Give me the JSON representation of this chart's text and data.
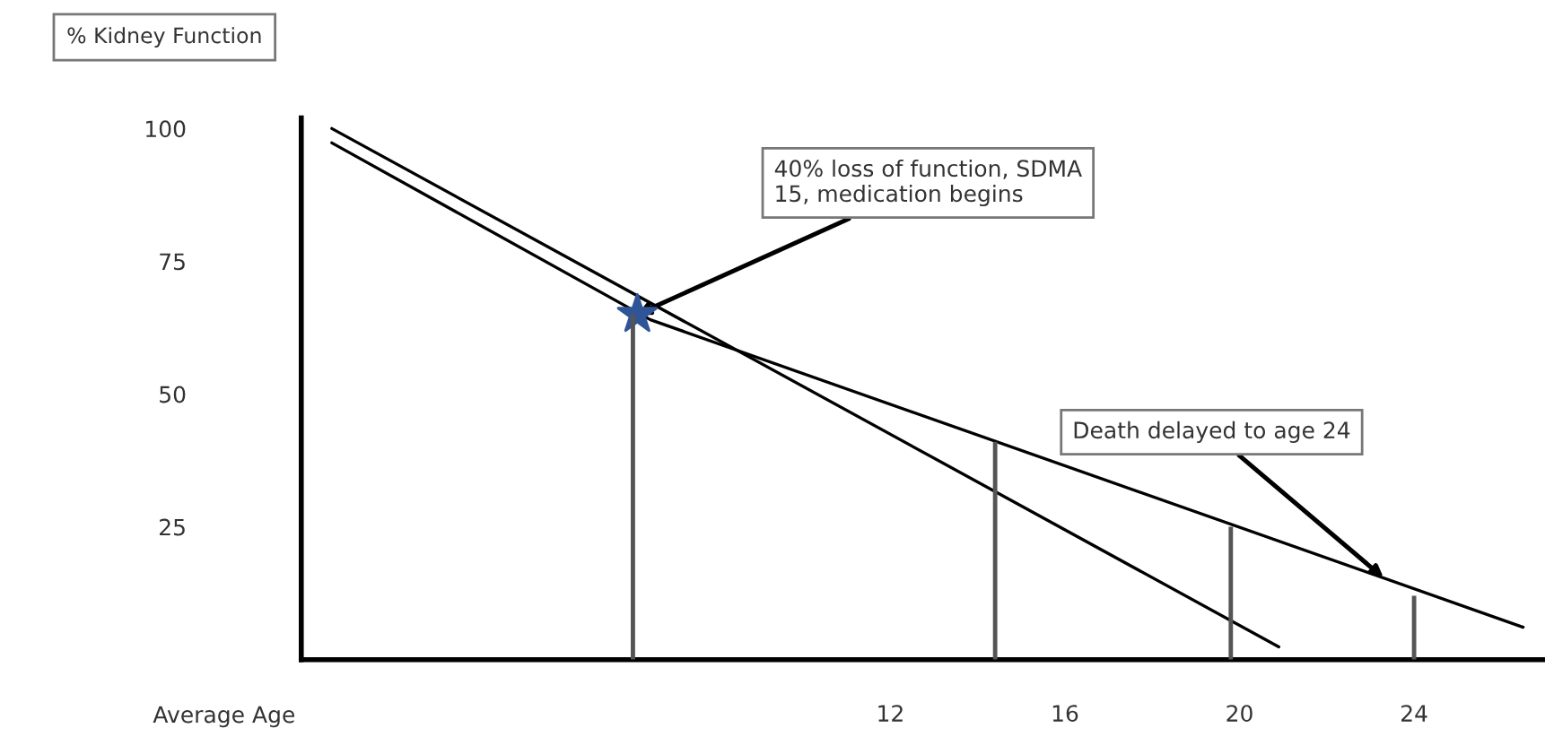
{
  "chart_data": {
    "type": "line",
    "xlabel": "Average Age",
    "ylabel": "% Kidney Function",
    "xlim": [
      -1.5,
      27
    ],
    "ylim": [
      0,
      102
    ],
    "xticks": [
      12,
      16,
      20,
      24
    ],
    "yticks": [
      25,
      50,
      75,
      100
    ],
    "grid": false,
    "series": [
      {
        "color": "#000000",
        "x": [
          -0.8,
          20.9
        ],
        "values": [
          100,
          2.4
        ]
      },
      {
        "color": "#000000",
        "x": [
          -0.8,
          6.5,
          26.5
        ],
        "values": [
          97.3,
          64,
          6.1
        ]
      },
      {
        "type": "bar",
        "color": "#555555",
        "x": [
          6.1,
          14.4,
          19.8,
          24
        ],
        "values": [
          65,
          41,
          25,
          12
        ]
      },
      {
        "type": "scatter",
        "color": "#2f5597",
        "marker": "star",
        "x": [
          6.2
        ],
        "values": [
          65
        ]
      }
    ],
    "annotations": [
      {
        "text": "40% loss of function, SDMA\n15, medication begins",
        "x": 6.2,
        "y": 65
      },
      {
        "text": "Death delayed to age 24",
        "x": 23.3,
        "y": 15.4
      }
    ]
  }
}
